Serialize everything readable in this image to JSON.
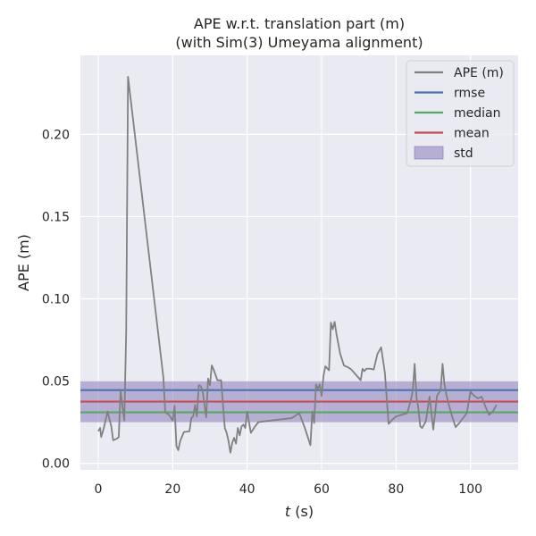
{
  "chart_data": {
    "type": "line",
    "title_lines": [
      "APE w.r.t. translation part (m)",
      "(with Sim(3) Umeyama alignment)"
    ],
    "xlabel_var": "t",
    "xlabel_unit": " (s)",
    "ylabel": "APE (m)",
    "xlim": [
      -4.8,
      112.8
    ],
    "ylim": [
      -0.004,
      0.248
    ],
    "xticks": [
      0,
      20,
      40,
      60,
      80,
      100
    ],
    "xtick_labels": [
      "0",
      "20",
      "40",
      "60",
      "80",
      "100"
    ],
    "yticks": [
      0.0,
      0.05,
      0.1,
      0.15,
      0.2
    ],
    "ytick_labels": [
      "0.00",
      "0.05",
      "0.10",
      "0.15",
      "0.20"
    ],
    "grid": true,
    "legend_position": "top-right",
    "colors": {
      "background": "#eaeaf2",
      "grid": "#ffffff",
      "ape": "#808080",
      "rmse": "#4c72b0",
      "median": "#55a868",
      "mean": "#c44e52",
      "std": "#8172b3"
    },
    "stats": {
      "rmse": 0.0445,
      "median": 0.031,
      "mean": 0.0375,
      "std": 0.0125
    },
    "series": [
      {
        "name": "APE (m)",
        "x": [
          0.0,
          0.5,
          0.8,
          1.5,
          2.5,
          3.5,
          4.0,
          5.0,
          5.5,
          6.0,
          6.5,
          7.0,
          7.5,
          8.0,
          17.5,
          18.0,
          19.0,
          20.0,
          20.5,
          21.0,
          21.5,
          22.0,
          23.0,
          24.5,
          25.0,
          25.5,
          26.0,
          26.5,
          27.0,
          27.5,
          28.0,
          29.0,
          29.5,
          30.0,
          30.5,
          31.0,
          32.0,
          33.0,
          34.0,
          34.5,
          35.0,
          35.5,
          36.0,
          36.5,
          37.0,
          37.5,
          38.0,
          38.5,
          39.0,
          39.5,
          40.0,
          41.0,
          42.0,
          43.0,
          44.5,
          52.0,
          54.0,
          55.5,
          57.0,
          57.5,
          58.0,
          58.5,
          59.0,
          59.5,
          60.0,
          60.5,
          61.0,
          62.0,
          62.5,
          63.0,
          63.5,
          64.0,
          65.0,
          66.0,
          67.0,
          68.0,
          70.5,
          71.0,
          71.5,
          72.0,
          73.0,
          74.0,
          75.0,
          76.0,
          77.0,
          78.0,
          79.0,
          80.0,
          83.0,
          84.0,
          84.5,
          85.0,
          85.5,
          86.0,
          86.5,
          87.0,
          88.0,
          89.0,
          90.0,
          91.0,
          92.0,
          92.5,
          93.0,
          93.5,
          94.0,
          95.0,
          96.0,
          97.0,
          98.0,
          99.0,
          100.0,
          101.0,
          102.0,
          103.0,
          104.0,
          105.0,
          106.0,
          107.0
        ],
        "values": [
          0.0195,
          0.0215,
          0.016,
          0.0215,
          0.0315,
          0.0225,
          0.014,
          0.015,
          0.016,
          0.044,
          0.0345,
          0.026,
          0.08,
          0.235,
          0.052,
          0.031,
          0.0295,
          0.026,
          0.035,
          0.0105,
          0.008,
          0.0135,
          0.019,
          0.0195,
          0.0275,
          0.0285,
          0.0355,
          0.0285,
          0.0475,
          0.047,
          0.0445,
          0.028,
          0.0515,
          0.0475,
          0.0595,
          0.057,
          0.0505,
          0.0505,
          0.0215,
          0.0185,
          0.0135,
          0.0065,
          0.0125,
          0.0155,
          0.012,
          0.0215,
          0.017,
          0.0225,
          0.0235,
          0.0215,
          0.0315,
          0.0185,
          0.022,
          0.025,
          0.0255,
          0.0275,
          0.0305,
          0.0215,
          0.011,
          0.0315,
          0.0245,
          0.048,
          0.0455,
          0.048,
          0.041,
          0.053,
          0.059,
          0.0565,
          0.0855,
          0.0815,
          0.086,
          0.0785,
          0.0665,
          0.0595,
          0.0585,
          0.057,
          0.0505,
          0.0575,
          0.056,
          0.0575,
          0.0575,
          0.057,
          0.0665,
          0.0705,
          0.055,
          0.024,
          0.0265,
          0.0285,
          0.0305,
          0.0385,
          0.0445,
          0.0605,
          0.04,
          0.0335,
          0.0225,
          0.0215,
          0.0255,
          0.0405,
          0.0205,
          0.041,
          0.0445,
          0.0605,
          0.048,
          0.042,
          0.037,
          0.029,
          0.022,
          0.0245,
          0.0275,
          0.0305,
          0.0435,
          0.041,
          0.0395,
          0.0405,
          0.0345,
          0.0295,
          0.0315,
          0.0355
        ]
      }
    ],
    "legend": [
      {
        "label": "APE (m)",
        "kind": "line",
        "color_key": "ape"
      },
      {
        "label": "rmse",
        "kind": "line",
        "color_key": "rmse"
      },
      {
        "label": "median",
        "kind": "line",
        "color_key": "median"
      },
      {
        "label": "mean",
        "kind": "line",
        "color_key": "mean"
      },
      {
        "label": "std",
        "kind": "patch",
        "color_key": "std"
      }
    ]
  }
}
